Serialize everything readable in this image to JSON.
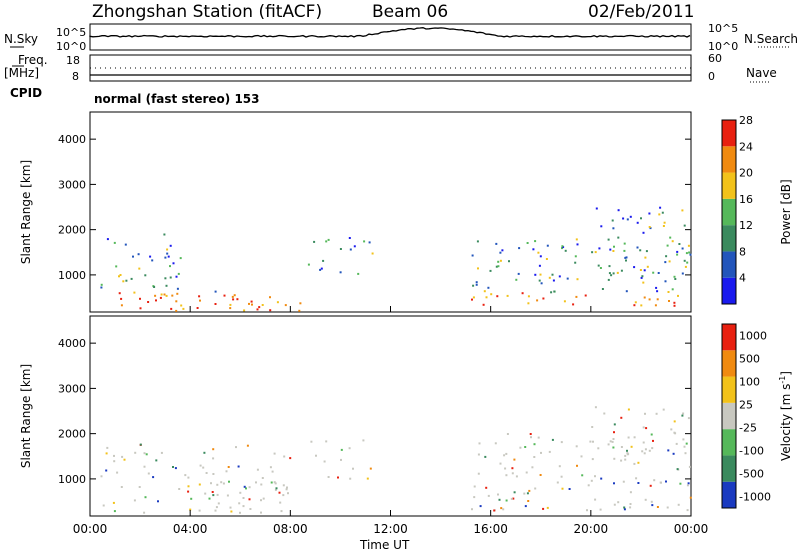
{
  "header": {
    "station": "Zhongshan Station (fitACF)",
    "beam": "Beam 06",
    "date": "02/Feb/2011"
  },
  "sky_panel": {
    "left_label": "N.Sky",
    "right_label": "N.Search",
    "tick_top_left": "10^5",
    "tick_bottom_left": "10^0",
    "tick_top_right": "10^5",
    "tick_bottom_right": "10^0"
  },
  "freq_panel": {
    "left_label_line1": "Freq.",
    "left_label_line2": "[MHz]",
    "right_label": "Nave",
    "tick_left_top": "18",
    "tick_left_bottom": "8",
    "tick_right_top": "60",
    "tick_right_bottom": "0"
  },
  "cpid": {
    "label": "CPID",
    "value": "normal (fast stereo) 153"
  },
  "chart_data": [
    {
      "type": "heatmap",
      "ylabel": "Slant Range [km]",
      "xlabel": "",
      "y_ticks": [
        "1000",
        "2000",
        "3000",
        "4000"
      ],
      "ylim": [
        180,
        4600
      ],
      "colorbar": {
        "label": "Power [dB]",
        "ticks": [
          "4",
          "8",
          "12",
          "16",
          "20",
          "24",
          "28"
        ],
        "colors": [
          "#1a1aee",
          "#2255bb",
          "#3a8a5e",
          "#55b85a",
          "#f2c21a",
          "#f08a10",
          "#e82010"
        ]
      }
    },
    {
      "type": "heatmap",
      "ylabel": "Slant Range [km]",
      "xlabel": "Time UT",
      "y_ticks": [
        "1000",
        "2000",
        "3000",
        "4000"
      ],
      "ylim": [
        180,
        4600
      ],
      "x_ticks": [
        "00:00",
        "04:00",
        "08:00",
        "12:00",
        "16:00",
        "20:00",
        "00:00"
      ],
      "colorbar": {
        "label": "Velocity [m s",
        "label_sup": "-1",
        "label_close": "]",
        "ticks": [
          "1000",
          "500",
          "100",
          "25",
          "-25",
          "-100",
          "-500",
          "-1000"
        ],
        "colors": [
          "#1a3ac0",
          "#3a8a5e",
          "#55b85a",
          "#c8c8c0",
          "#f2c21a",
          "#f08a10",
          "#e82010"
        ]
      }
    }
  ]
}
